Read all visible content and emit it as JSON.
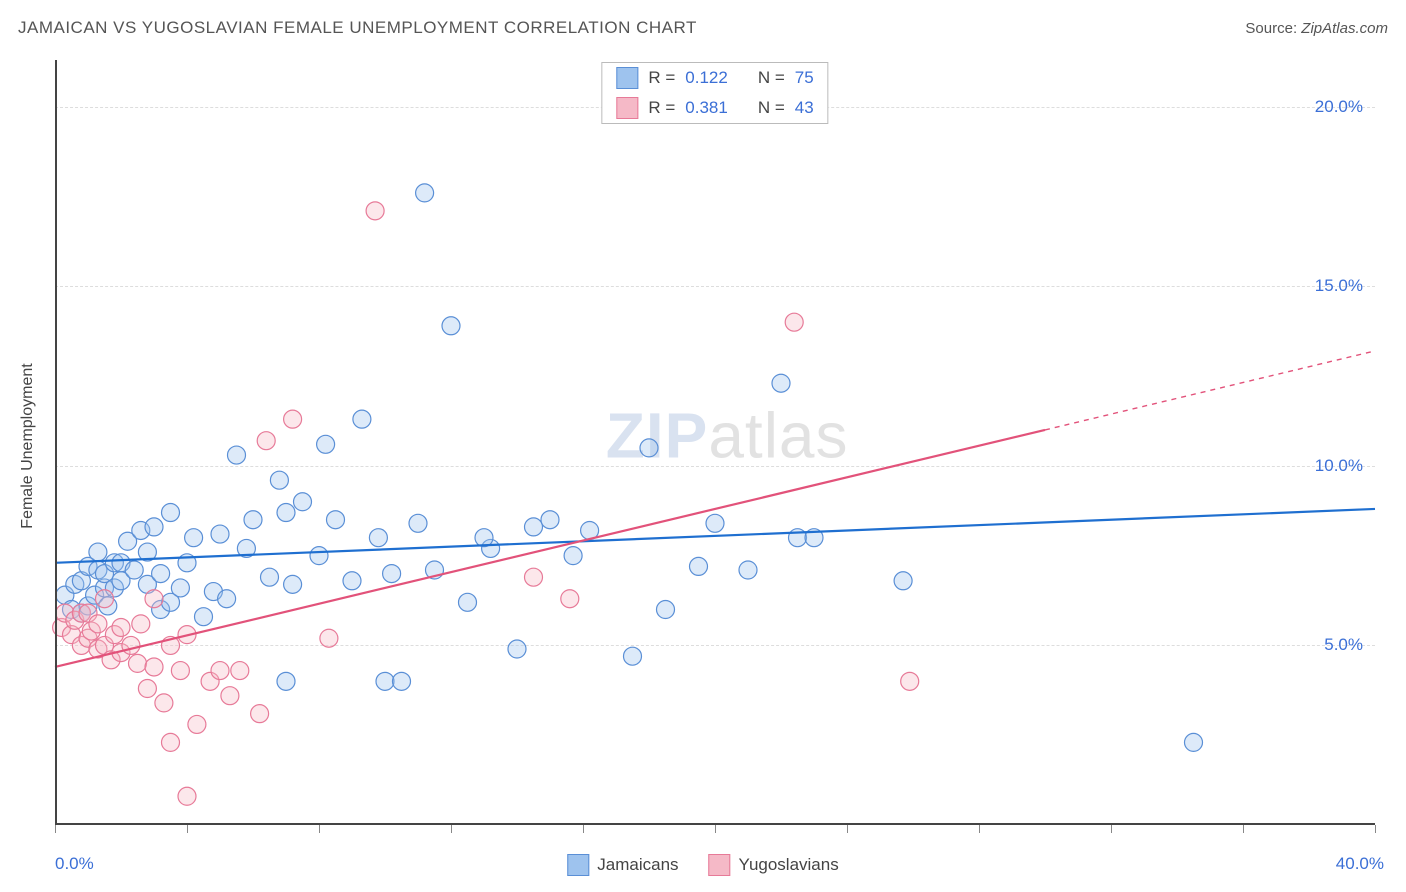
{
  "title": "JAMAICAN VS YUGOSLAVIAN FEMALE UNEMPLOYMENT CORRELATION CHART",
  "source_label": "Source:",
  "source_value": "ZipAtlas.com",
  "watermark_prefix": "ZIP",
  "watermark_suffix": "atlas",
  "ylabel": "Female Unemployment",
  "chart": {
    "type": "scatter",
    "background_color": "#ffffff",
    "grid_color": "#dddddd",
    "axis_color": "#444444",
    "tick_label_color": "#3b6fd6",
    "text_color": "#444444",
    "title_fontsize": 17,
    "tick_fontsize": 17,
    "label_fontsize": 16,
    "xlim": [
      0,
      40
    ],
    "ylim": [
      0,
      21.3
    ],
    "x_tick_label_left": "0.0%",
    "x_tick_label_right": "40.0%",
    "y_ticks": [
      5,
      10,
      15,
      20
    ],
    "y_tick_labels": [
      "5.0%",
      "10.0%",
      "15.0%",
      "20.0%"
    ],
    "x_minor_ticks": [
      0,
      4,
      8,
      12,
      16,
      20,
      24,
      28,
      32,
      36,
      40
    ],
    "marker_radius": 9,
    "marker_stroke_width": 1.2,
    "marker_fill_opacity": 0.35,
    "line_width": 2.2
  },
  "series": [
    {
      "name": "Jamaicans",
      "fill_color": "#9ec3ee",
      "stroke_color": "#5a8fd6",
      "line_color": "#1f6fd0",
      "R": "0.122",
      "N": "75",
      "regression": {
        "x1": 0,
        "y1": 7.3,
        "x2": 40,
        "y2": 8.8
      },
      "dashed_extension": null,
      "points": [
        [
          0.3,
          6.4
        ],
        [
          0.5,
          6.0
        ],
        [
          0.6,
          6.7
        ],
        [
          0.8,
          5.9
        ],
        [
          0.8,
          6.8
        ],
        [
          1.0,
          6.1
        ],
        [
          1.0,
          7.2
        ],
        [
          1.2,
          6.4
        ],
        [
          1.3,
          7.1
        ],
        [
          1.3,
          7.6
        ],
        [
          1.5,
          6.6
        ],
        [
          1.5,
          7.0
        ],
        [
          1.6,
          6.1
        ],
        [
          1.8,
          7.3
        ],
        [
          1.8,
          6.6
        ],
        [
          2.0,
          7.3
        ],
        [
          2.0,
          6.8
        ],
        [
          2.2,
          7.9
        ],
        [
          2.4,
          7.1
        ],
        [
          2.6,
          8.2
        ],
        [
          2.8,
          6.7
        ],
        [
          2.8,
          7.6
        ],
        [
          3.0,
          8.3
        ],
        [
          3.2,
          6.0
        ],
        [
          3.2,
          7.0
        ],
        [
          3.5,
          6.2
        ],
        [
          3.5,
          8.7
        ],
        [
          3.8,
          6.6
        ],
        [
          4.0,
          7.3
        ],
        [
          4.2,
          8.0
        ],
        [
          4.5,
          5.8
        ],
        [
          4.8,
          6.5
        ],
        [
          5.0,
          8.1
        ],
        [
          5.2,
          6.3
        ],
        [
          5.5,
          10.3
        ],
        [
          5.8,
          7.7
        ],
        [
          6.0,
          8.5
        ],
        [
          6.5,
          6.9
        ],
        [
          6.8,
          9.6
        ],
        [
          7.0,
          8.7
        ],
        [
          7.0,
          4.0
        ],
        [
          7.2,
          6.7
        ],
        [
          7.5,
          9.0
        ],
        [
          8.0,
          7.5
        ],
        [
          8.2,
          10.6
        ],
        [
          8.5,
          8.5
        ],
        [
          9.0,
          6.8
        ],
        [
          9.3,
          11.3
        ],
        [
          9.8,
          8.0
        ],
        [
          10.0,
          4.0
        ],
        [
          10.2,
          7.0
        ],
        [
          10.5,
          4.0
        ],
        [
          11.0,
          8.4
        ],
        [
          11.2,
          17.6
        ],
        [
          11.5,
          7.1
        ],
        [
          12.0,
          13.9
        ],
        [
          12.5,
          6.2
        ],
        [
          13.2,
          7.7
        ],
        [
          14.0,
          4.9
        ],
        [
          14.5,
          8.3
        ],
        [
          15.0,
          8.5
        ],
        [
          15.7,
          7.5
        ],
        [
          16.2,
          8.2
        ],
        [
          17.5,
          4.7
        ],
        [
          18.0,
          10.5
        ],
        [
          18.5,
          6.0
        ],
        [
          19.5,
          7.2
        ],
        [
          20.0,
          8.4
        ],
        [
          21.0,
          7.1
        ],
        [
          22.0,
          12.3
        ],
        [
          22.5,
          8.0
        ],
        [
          23.0,
          8.0
        ],
        [
          25.7,
          6.8
        ],
        [
          34.5,
          2.3
        ],
        [
          13.0,
          8.0
        ]
      ]
    },
    {
      "name": "Yugoslavians",
      "fill_color": "#f5b9c7",
      "stroke_color": "#e77a98",
      "line_color": "#e2527a",
      "R": "0.381",
      "N": "43",
      "regression": {
        "x1": 0,
        "y1": 4.4,
        "x2": 30,
        "y2": 11.0
      },
      "dashed_extension": {
        "x1": 30,
        "y1": 11.0,
        "x2": 40,
        "y2": 13.2
      },
      "points": [
        [
          0.2,
          5.5
        ],
        [
          0.3,
          5.9
        ],
        [
          0.5,
          5.3
        ],
        [
          0.6,
          5.7
        ],
        [
          0.8,
          5.0
        ],
        [
          0.8,
          5.9
        ],
        [
          1.0,
          5.2
        ],
        [
          1.0,
          5.9
        ],
        [
          1.1,
          5.4
        ],
        [
          1.3,
          4.9
        ],
        [
          1.3,
          5.6
        ],
        [
          1.5,
          5.0
        ],
        [
          1.5,
          6.3
        ],
        [
          1.7,
          4.6
        ],
        [
          1.8,
          5.3
        ],
        [
          2.0,
          4.8
        ],
        [
          2.0,
          5.5
        ],
        [
          2.3,
          5.0
        ],
        [
          2.5,
          4.5
        ],
        [
          2.6,
          5.6
        ],
        [
          2.8,
          3.8
        ],
        [
          3.0,
          4.4
        ],
        [
          3.0,
          6.3
        ],
        [
          3.3,
          3.4
        ],
        [
          3.5,
          5.0
        ],
        [
          3.5,
          2.3
        ],
        [
          3.8,
          4.3
        ],
        [
          4.0,
          0.8
        ],
        [
          4.0,
          5.3
        ],
        [
          4.3,
          2.8
        ],
        [
          4.7,
          4.0
        ],
        [
          5.0,
          4.3
        ],
        [
          5.3,
          3.6
        ],
        [
          5.6,
          4.3
        ],
        [
          6.2,
          3.1
        ],
        [
          6.4,
          10.7
        ],
        [
          7.2,
          11.3
        ],
        [
          8.3,
          5.2
        ],
        [
          9.7,
          17.1
        ],
        [
          14.5,
          6.9
        ],
        [
          15.6,
          6.3
        ],
        [
          22.4,
          14.0
        ],
        [
          25.9,
          4.0
        ]
      ]
    }
  ],
  "stat_legend_labels": {
    "R": "R =",
    "N": "N ="
  }
}
